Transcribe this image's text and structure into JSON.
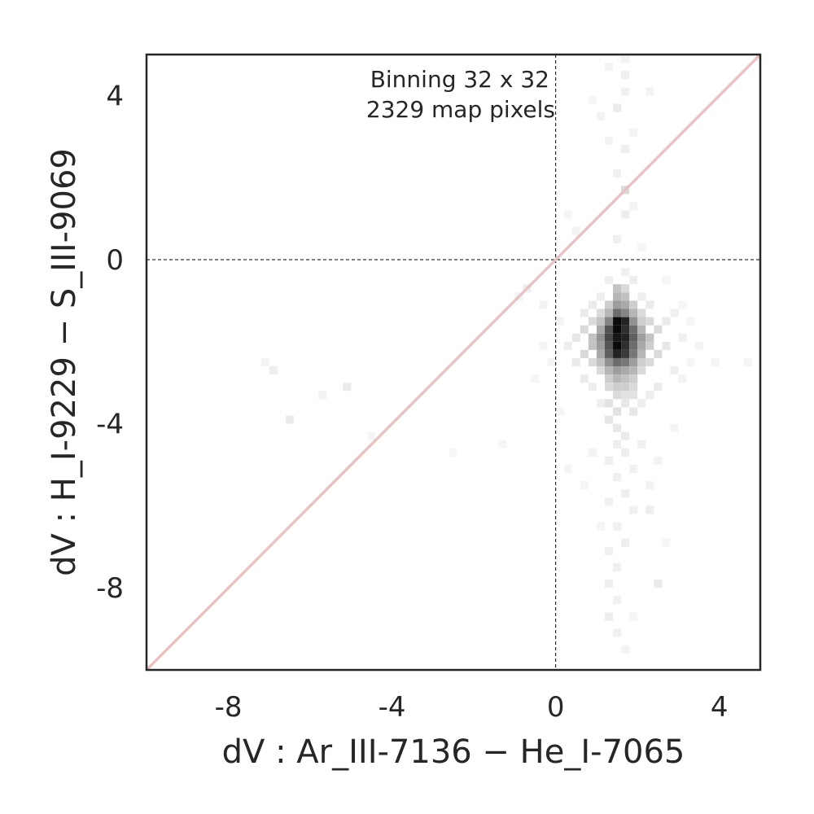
{
  "chart_data": {
    "type": "heatmap",
    "title": "",
    "xlabel": "dV : Ar_III-7136 − He_I-7065",
    "ylabel": "dV : H_I-9229 − S_III-9069",
    "xlim": [
      -10,
      5
    ],
    "ylim": [
      -10,
      5
    ],
    "x_ticks": [
      -8,
      -4,
      0,
      4
    ],
    "y_ticks": [
      -8,
      -4,
      0,
      4
    ],
    "x_tick_labels": [
      "-8",
      "-4",
      "0",
      "4"
    ],
    "y_tick_labels": [
      "-8",
      "-4",
      "0",
      "4"
    ],
    "grid": false,
    "reference_lines": [
      {
        "kind": "vertical",
        "value": 0,
        "style": "dashed",
        "color": "#000000"
      },
      {
        "kind": "horizontal",
        "value": 0,
        "style": "dashed",
        "color": "#000000"
      },
      {
        "kind": "identity",
        "from": [
          -10,
          -10
        ],
        "to": [
          5,
          5
        ],
        "color": "#e8c3c4"
      }
    ],
    "annotations": [
      "Binning 32 x 32",
      "2329 map pixels"
    ],
    "colormap": "greys",
    "cell_size": 0.2,
    "cells": [
      [
        1.4,
        -1.6,
        1.0
      ],
      [
        1.6,
        -1.6,
        0.9
      ],
      [
        1.4,
        -1.8,
        1.0
      ],
      [
        1.6,
        -1.8,
        0.85
      ],
      [
        1.4,
        -2.0,
        0.95
      ],
      [
        1.6,
        -2.0,
        0.9
      ],
      [
        1.4,
        -2.2,
        1.0
      ],
      [
        1.6,
        -2.2,
        0.85
      ],
      [
        1.4,
        -2.4,
        0.9
      ],
      [
        1.6,
        -2.4,
        0.8
      ],
      [
        1.2,
        -1.8,
        0.7
      ],
      [
        1.8,
        -1.8,
        0.6
      ],
      [
        1.2,
        -2.0,
        0.75
      ],
      [
        1.8,
        -2.0,
        0.65
      ],
      [
        1.2,
        -2.2,
        0.7
      ],
      [
        1.8,
        -2.2,
        0.6
      ],
      [
        1.2,
        -2.4,
        0.65
      ],
      [
        1.8,
        -2.4,
        0.55
      ],
      [
        1.4,
        -1.4,
        0.6
      ],
      [
        1.6,
        -1.4,
        0.5
      ],
      [
        1.4,
        -2.6,
        0.6
      ],
      [
        1.6,
        -2.6,
        0.55
      ],
      [
        1.0,
        -2.0,
        0.45
      ],
      [
        2.0,
        -2.0,
        0.4
      ],
      [
        1.0,
        -2.2,
        0.4
      ],
      [
        2.0,
        -2.2,
        0.35
      ],
      [
        1.2,
        -1.6,
        0.5
      ],
      [
        1.8,
        -1.6,
        0.45
      ],
      [
        1.2,
        -2.6,
        0.45
      ],
      [
        1.8,
        -2.6,
        0.4
      ],
      [
        1.4,
        -1.2,
        0.4
      ],
      [
        1.6,
        -1.2,
        0.35
      ],
      [
        1.4,
        -2.8,
        0.4
      ],
      [
        1.6,
        -2.8,
        0.35
      ],
      [
        1.0,
        -1.8,
        0.35
      ],
      [
        2.0,
        -1.8,
        0.3
      ],
      [
        1.0,
        -2.4,
        0.35
      ],
      [
        2.0,
        -2.4,
        0.3
      ],
      [
        1.2,
        -1.4,
        0.3
      ],
      [
        1.8,
        -1.4,
        0.3
      ],
      [
        1.2,
        -2.8,
        0.3
      ],
      [
        1.8,
        -2.8,
        0.3
      ],
      [
        1.4,
        -1.0,
        0.3
      ],
      [
        1.6,
        -1.0,
        0.25
      ],
      [
        1.4,
        -3.0,
        0.3
      ],
      [
        1.6,
        -3.0,
        0.25
      ],
      [
        0.8,
        -2.0,
        0.25
      ],
      [
        2.2,
        -2.0,
        0.25
      ],
      [
        0.8,
        -2.2,
        0.25
      ],
      [
        2.2,
        -2.2,
        0.2
      ],
      [
        1.0,
        -1.6,
        0.25
      ],
      [
        2.0,
        -1.6,
        0.2
      ],
      [
        1.0,
        -2.6,
        0.25
      ],
      [
        2.0,
        -2.6,
        0.2
      ],
      [
        1.2,
        -3.0,
        0.2
      ],
      [
        1.8,
        -3.0,
        0.2
      ],
      [
        1.4,
        -3.2,
        0.2
      ],
      [
        1.6,
        -3.2,
        0.2
      ],
      [
        1.2,
        -1.2,
        0.2
      ],
      [
        1.8,
        -1.2,
        0.2
      ],
      [
        1.4,
        -0.8,
        0.25
      ],
      [
        1.6,
        -0.8,
        0.15
      ],
      [
        0.6,
        -1.8,
        0.15
      ],
      [
        2.4,
        -1.8,
        0.15
      ],
      [
        0.6,
        -2.4,
        0.15
      ],
      [
        2.4,
        -2.4,
        0.15
      ],
      [
        0.8,
        -1.6,
        0.15
      ],
      [
        2.2,
        -1.6,
        0.15
      ],
      [
        0.8,
        -2.6,
        0.15
      ],
      [
        2.2,
        -2.6,
        0.15
      ],
      [
        1.0,
        -1.4,
        0.15
      ],
      [
        2.0,
        -1.4,
        0.15
      ],
      [
        1.0,
        -2.8,
        0.15
      ],
      [
        2.0,
        -2.8,
        0.15
      ],
      [
        1.2,
        -3.2,
        0.15
      ],
      [
        1.8,
        -3.2,
        0.15
      ],
      [
        1.4,
        -3.4,
        0.15
      ],
      [
        1.6,
        -3.4,
        0.12
      ],
      [
        1.2,
        -3.6,
        0.12
      ],
      [
        1.8,
        -3.4,
        0.12
      ],
      [
        1.4,
        -3.8,
        0.12
      ],
      [
        1.6,
        -3.6,
        0.1
      ],
      [
        1.2,
        -4.0,
        0.1
      ],
      [
        1.8,
        -3.8,
        0.1
      ],
      [
        1.4,
        -4.2,
        0.1
      ],
      [
        1.6,
        -4.4,
        0.08
      ],
      [
        0.4,
        -2.0,
        0.1
      ],
      [
        2.6,
        -2.2,
        0.1
      ],
      [
        0.4,
        -2.6,
        0.08
      ],
      [
        2.6,
        -1.6,
        0.08
      ],
      [
        2.8,
        -2.8,
        0.07
      ],
      [
        0.2,
        -2.2,
        0.07
      ],
      [
        3.0,
        -2.0,
        0.06
      ],
      [
        2.8,
        -1.4,
        0.06
      ],
      [
        0.6,
        -1.4,
        0.08
      ],
      [
        0.6,
        -3.0,
        0.08
      ],
      [
        2.4,
        -3.2,
        0.08
      ],
      [
        2.2,
        -1.2,
        0.08
      ],
      [
        0.8,
        -1.2,
        0.08
      ],
      [
        0.8,
        -3.2,
        0.07
      ],
      [
        2.2,
        -3.4,
        0.07
      ],
      [
        1.0,
        -3.6,
        0.07
      ],
      [
        2.0,
        -3.6,
        0.07
      ],
      [
        1.0,
        -1.0,
        0.07
      ],
      [
        2.0,
        -1.0,
        0.07
      ],
      [
        1.2,
        -0.6,
        0.07
      ],
      [
        1.8,
        -0.6,
        0.07
      ],
      [
        1.6,
        -0.4,
        0.06
      ],
      [
        1.4,
        0.4,
        0.06
      ],
      [
        1.6,
        1.0,
        0.07
      ],
      [
        1.6,
        1.6,
        0.15
      ],
      [
        1.4,
        2.0,
        0.06
      ],
      [
        1.6,
        2.6,
        0.06
      ],
      [
        1.4,
        3.6,
        0.08
      ],
      [
        1.6,
        4.0,
        0.06
      ],
      [
        1.6,
        4.4,
        0.06
      ],
      [
        1.8,
        3.0,
        0.05
      ],
      [
        1.2,
        2.8,
        0.05
      ],
      [
        1.0,
        3.4,
        0.05
      ],
      [
        2.2,
        4.0,
        0.05
      ],
      [
        1.2,
        4.6,
        0.05
      ],
      [
        1.6,
        4.8,
        0.05
      ],
      [
        0.8,
        3.8,
        0.04
      ],
      [
        1.8,
        1.2,
        0.05
      ],
      [
        1.4,
        -4.6,
        0.07
      ],
      [
        1.6,
        -4.8,
        0.07
      ],
      [
        1.2,
        -5.0,
        0.06
      ],
      [
        1.8,
        -5.2,
        0.06
      ],
      [
        1.4,
        -5.4,
        0.06
      ],
      [
        1.6,
        -5.8,
        0.07
      ],
      [
        1.2,
        -6.0,
        0.06
      ],
      [
        1.8,
        -6.2,
        0.06
      ],
      [
        1.4,
        -6.6,
        0.06
      ],
      [
        1.6,
        -7.0,
        0.07
      ],
      [
        1.2,
        -7.2,
        0.06
      ],
      [
        1.4,
        -7.6,
        0.06
      ],
      [
        1.2,
        -8.0,
        0.07
      ],
      [
        1.4,
        -8.4,
        0.06
      ],
      [
        1.2,
        -8.8,
        0.07
      ],
      [
        1.4,
        -9.2,
        0.06
      ],
      [
        1.6,
        -9.6,
        0.05
      ],
      [
        2.2,
        -6.2,
        0.07
      ],
      [
        2.4,
        -5.0,
        0.05
      ],
      [
        2.0,
        -4.6,
        0.06
      ],
      [
        2.2,
        -5.6,
        0.05
      ],
      [
        0.8,
        -4.8,
        0.05
      ],
      [
        0.6,
        -5.6,
        0.04
      ],
      [
        2.4,
        -8.0,
        0.08
      ],
      [
        2.6,
        -7.0,
        0.04
      ],
      [
        1.0,
        -6.6,
        0.04
      ],
      [
        3.0,
        -3.0,
        0.05
      ],
      [
        3.2,
        -2.6,
        0.04
      ],
      [
        3.4,
        -2.2,
        0.04
      ],
      [
        3.8,
        -2.6,
        0.04
      ],
      [
        4.6,
        -2.6,
        0.04
      ],
      [
        3.2,
        -1.6,
        0.04
      ],
      [
        0.0,
        -1.6,
        0.05
      ],
      [
        -0.2,
        -2.6,
        0.04
      ],
      [
        -0.4,
        -1.2,
        0.05
      ],
      [
        -0.8,
        -0.8,
        0.07
      ],
      [
        -1.0,
        -1.0,
        0.05
      ],
      [
        -0.4,
        -2.2,
        0.04
      ],
      [
        -0.6,
        -3.0,
        0.04
      ],
      [
        -1.4,
        -4.6,
        0.04
      ],
      [
        -5.2,
        -3.2,
        0.08
      ],
      [
        -5.8,
        -3.4,
        0.05
      ],
      [
        -7.2,
        -2.6,
        0.05
      ],
      [
        -7.0,
        -2.8,
        0.07
      ],
      [
        -6.6,
        -4.0,
        0.08
      ],
      [
        -4.6,
        -4.4,
        0.04
      ],
      [
        -2.6,
        -4.8,
        0.03
      ],
      [
        0.4,
        0.6,
        0.05
      ],
      [
        0.2,
        1.0,
        0.04
      ],
      [
        2.0,
        0.2,
        0.04
      ],
      [
        2.6,
        -0.6,
        0.04
      ],
      [
        3.0,
        -1.2,
        0.04
      ],
      [
        0.0,
        -3.8,
        0.04
      ],
      [
        2.8,
        -4.2,
        0.04
      ],
      [
        0.2,
        -5.2,
        0.04
      ],
      [
        1.8,
        -8.8,
        0.04
      ]
    ]
  }
}
